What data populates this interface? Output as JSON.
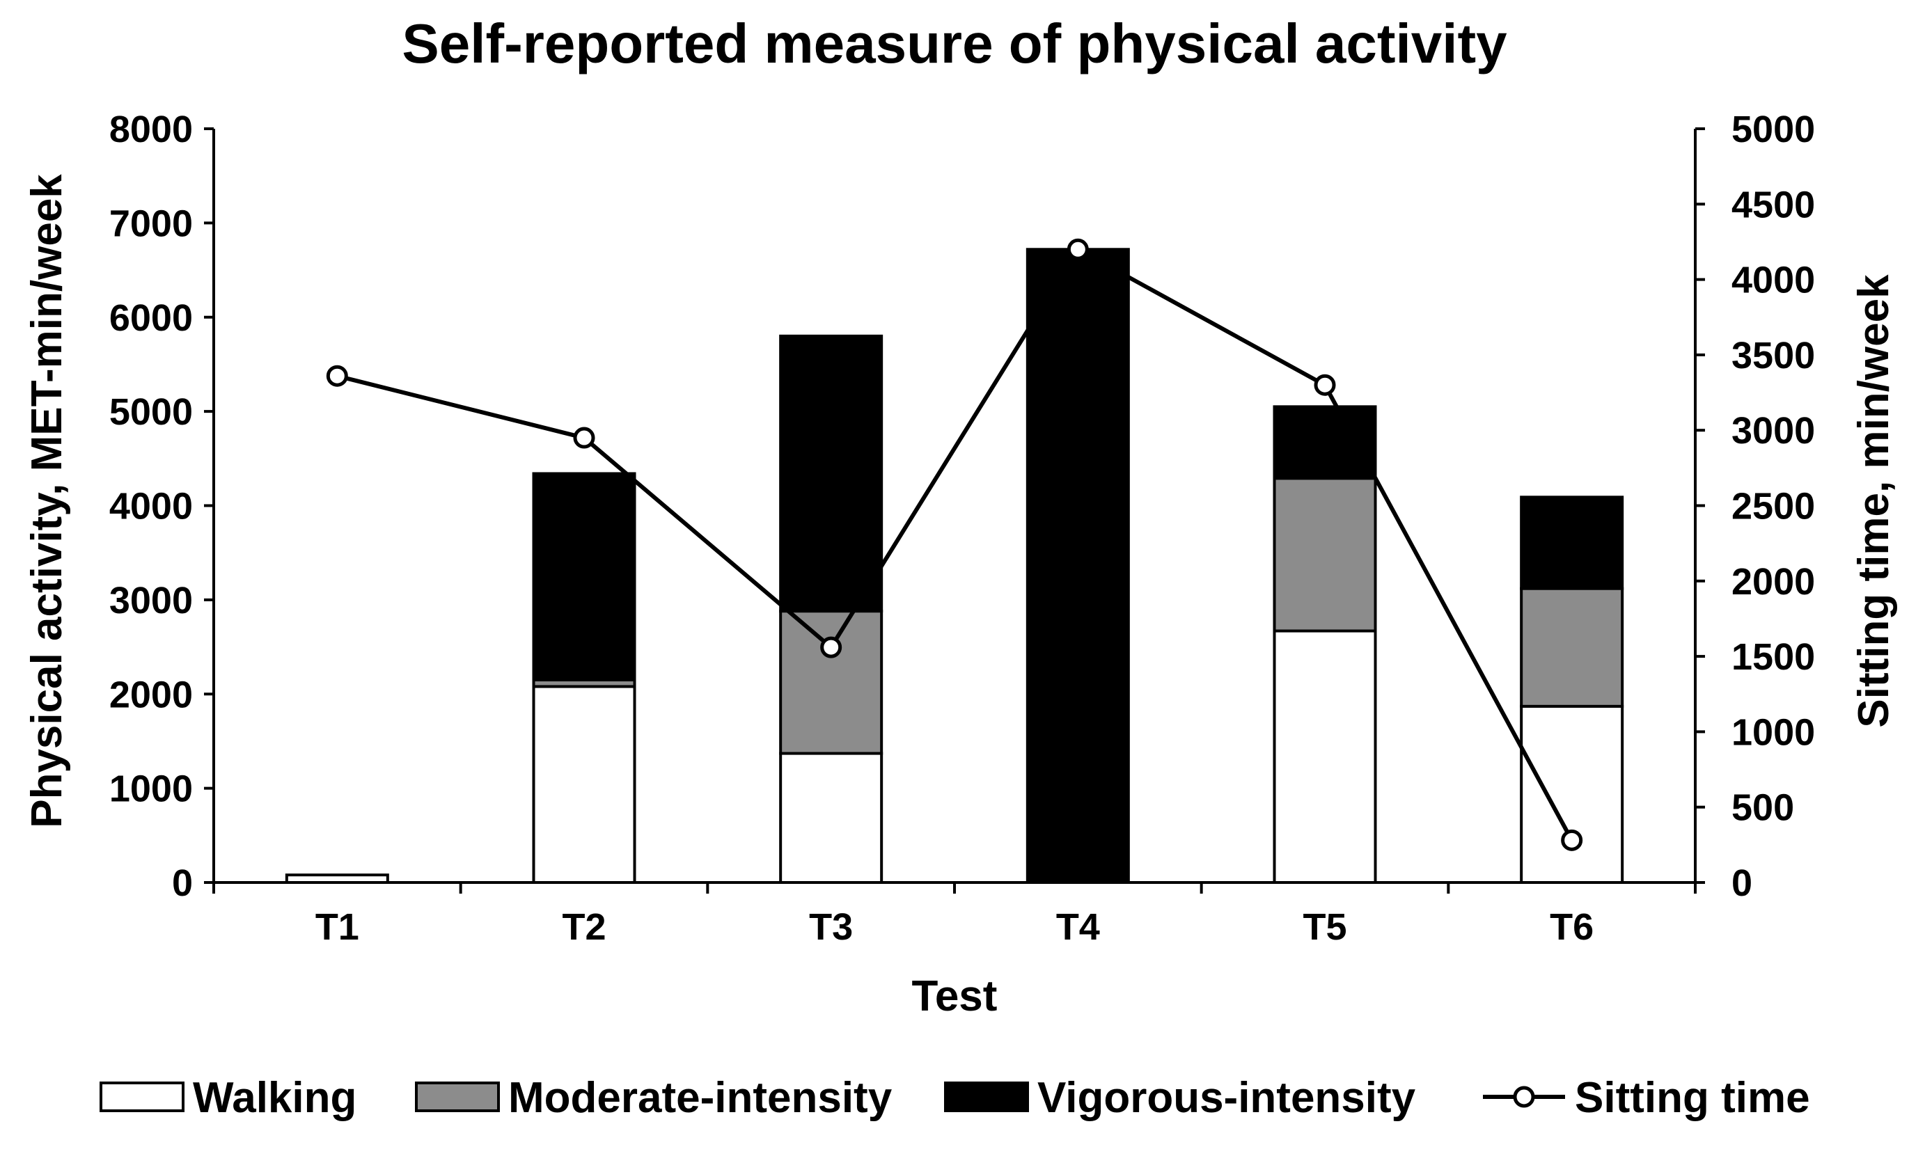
{
  "chart_data": {
    "type": "bar",
    "stacked": true,
    "title": "Self-reported measure of physical activity",
    "xlabel": "Test",
    "ylabel": "Physical activity, MET-min/week",
    "y2label": "Sitting time, min/week",
    "categories": [
      "T1",
      "T2",
      "T3",
      "T4",
      "T5",
      "T6"
    ],
    "ylim": [
      0,
      8000
    ],
    "yticks": [
      0,
      1000,
      2000,
      3000,
      4000,
      5000,
      6000,
      7000,
      8000
    ],
    "y2lim": [
      0,
      5000
    ],
    "y2ticks": [
      0,
      500,
      1000,
      1500,
      2000,
      2500,
      3000,
      3500,
      4000,
      4500,
      5000
    ],
    "series": [
      {
        "name": "Walking",
        "kind": "bar",
        "axis": "left",
        "color": "#ffffff",
        "values": [
          80,
          2080,
          1370,
          0,
          2670,
          1870
        ]
      },
      {
        "name": "Moderate-intensity",
        "kind": "bar",
        "axis": "left",
        "color": "#8c8c8c",
        "values": [
          0,
          70,
          1510,
          0,
          1620,
          1250
        ]
      },
      {
        "name": "Vigorous-intensity",
        "kind": "bar",
        "axis": "left",
        "color": "#000000",
        "values": [
          0,
          2190,
          2920,
          6720,
          760,
          970
        ]
      },
      {
        "name": "Sitting time",
        "kind": "line",
        "axis": "right",
        "color": "#000000",
        "values": [
          3360,
          2950,
          1560,
          4200,
          3300,
          280
        ]
      }
    ],
    "legend_position": "bottom",
    "grid": false
  }
}
